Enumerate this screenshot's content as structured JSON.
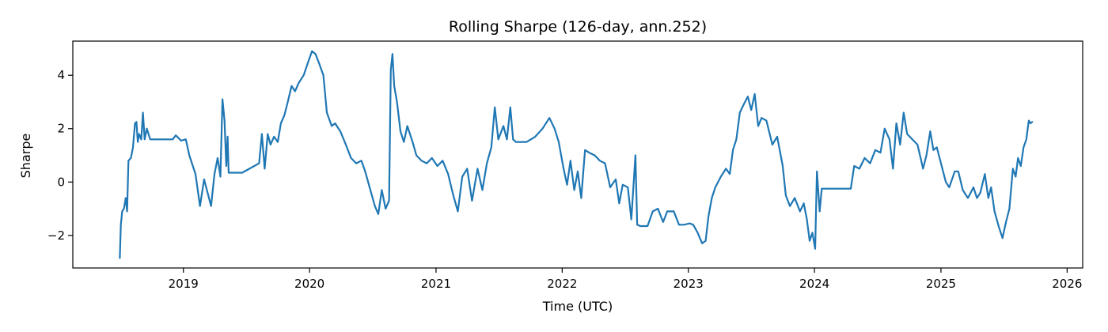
{
  "chart_data": {
    "type": "line",
    "title": "Rolling Sharpe (126-day, ann.252)",
    "xlabel": "Time (UTC)",
    "ylabel": "Sharpe",
    "xlim": [
      "2018-02-15",
      "2026-02-15"
    ],
    "ylim": [
      -3.22,
      5.28
    ],
    "x_ticks": [
      "2019",
      "2020",
      "2021",
      "2022",
      "2023",
      "2024",
      "2025",
      "2026"
    ],
    "x_tick_dates": [
      "2019-01-01",
      "2020-01-01",
      "2021-01-01",
      "2022-01-01",
      "2023-01-01",
      "2024-01-01",
      "2025-01-01",
      "2026-01-01"
    ],
    "y_ticks": [
      -2,
      0,
      2,
      4
    ],
    "y_tick_labels": [
      "−2",
      "0",
      "2",
      "4"
    ],
    "grid": false,
    "legend": "none",
    "series": [
      {
        "color": "#1f77b4",
        "points": [
          [
            "2018-07-01",
            -2.85
          ],
          [
            "2018-07-04",
            -1.6
          ],
          [
            "2018-07-08",
            -1.1
          ],
          [
            "2018-07-13",
            -1.0
          ],
          [
            "2018-07-18",
            -0.6
          ],
          [
            "2018-07-22",
            -1.1
          ],
          [
            "2018-07-26",
            0.8
          ],
          [
            "2018-08-02",
            0.9
          ],
          [
            "2018-08-08",
            1.3
          ],
          [
            "2018-08-14",
            2.2
          ],
          [
            "2018-08-18",
            2.25
          ],
          [
            "2018-08-22",
            1.5
          ],
          [
            "2018-08-26",
            1.8
          ],
          [
            "2018-09-01",
            1.6
          ],
          [
            "2018-09-06",
            2.6
          ],
          [
            "2018-09-11",
            1.6
          ],
          [
            "2018-09-17",
            2.0
          ],
          [
            "2018-09-27",
            1.6
          ],
          [
            "2018-11-01",
            1.6
          ],
          [
            "2018-12-01",
            1.6
          ],
          [
            "2018-12-10",
            1.75
          ],
          [
            "2018-12-25",
            1.55
          ],
          [
            "2019-01-08",
            1.6
          ],
          [
            "2019-01-18",
            1.0
          ],
          [
            "2019-02-05",
            0.3
          ],
          [
            "2019-02-18",
            -0.9
          ],
          [
            "2019-03-02",
            0.1
          ],
          [
            "2019-03-12",
            -0.4
          ],
          [
            "2019-03-22",
            -0.9
          ],
          [
            "2019-04-01",
            0.3
          ],
          [
            "2019-04-10",
            0.9
          ],
          [
            "2019-04-18",
            0.2
          ],
          [
            "2019-04-24",
            3.1
          ],
          [
            "2019-04-30",
            2.3
          ],
          [
            "2019-05-05",
            0.6
          ],
          [
            "2019-05-09",
            1.7
          ],
          [
            "2019-05-12",
            0.35
          ],
          [
            "2019-06-20",
            0.35
          ],
          [
            "2019-07-25",
            0.6
          ],
          [
            "2019-08-08",
            0.7
          ],
          [
            "2019-08-16",
            1.8
          ],
          [
            "2019-08-24",
            0.5
          ],
          [
            "2019-09-02",
            1.8
          ],
          [
            "2019-09-10",
            1.4
          ],
          [
            "2019-09-20",
            1.7
          ],
          [
            "2019-10-01",
            1.5
          ],
          [
            "2019-10-10",
            2.2
          ],
          [
            "2019-10-20",
            2.5
          ],
          [
            "2019-10-30",
            3.0
          ],
          [
            "2019-11-10",
            3.6
          ],
          [
            "2019-11-20",
            3.4
          ],
          [
            "2019-11-30",
            3.7
          ],
          [
            "2019-12-15",
            4.0
          ],
          [
            "2019-12-28",
            4.5
          ],
          [
            "2020-01-08",
            4.9
          ],
          [
            "2020-01-18",
            4.8
          ],
          [
            "2020-01-30",
            4.4
          ],
          [
            "2020-02-10",
            4.0
          ],
          [
            "2020-02-20",
            2.6
          ],
          [
            "2020-03-05",
            2.1
          ],
          [
            "2020-03-15",
            2.2
          ],
          [
            "2020-03-30",
            1.9
          ],
          [
            "2020-04-15",
            1.4
          ],
          [
            "2020-04-30",
            0.9
          ],
          [
            "2020-05-15",
            0.7
          ],
          [
            "2020-05-30",
            0.8
          ],
          [
            "2020-06-10",
            0.4
          ],
          [
            "2020-06-25",
            -0.3
          ],
          [
            "2020-07-08",
            -0.9
          ],
          [
            "2020-07-18",
            -1.2
          ],
          [
            "2020-07-28",
            -0.3
          ],
          [
            "2020-08-08",
            -1.0
          ],
          [
            "2020-08-18",
            -0.7
          ],
          [
            "2020-08-23",
            4.2
          ],
          [
            "2020-08-28",
            4.8
          ],
          [
            "2020-09-02",
            3.6
          ],
          [
            "2020-09-10",
            3.0
          ],
          [
            "2020-09-20",
            1.9
          ],
          [
            "2020-09-30",
            1.5
          ],
          [
            "2020-10-10",
            2.1
          ],
          [
            "2020-10-25",
            1.5
          ],
          [
            "2020-11-05",
            1.0
          ],
          [
            "2020-11-20",
            0.8
          ],
          [
            "2020-12-05",
            0.7
          ],
          [
            "2020-12-20",
            0.9
          ],
          [
            "2021-01-05",
            0.6
          ],
          [
            "2021-01-20",
            0.8
          ],
          [
            "2021-02-05",
            0.3
          ],
          [
            "2021-02-20",
            -0.5
          ],
          [
            "2021-03-05",
            -1.1
          ],
          [
            "2021-03-18",
            0.2
          ],
          [
            "2021-04-01",
            0.5
          ],
          [
            "2021-04-15",
            -0.7
          ],
          [
            "2021-05-01",
            0.5
          ],
          [
            "2021-05-15",
            -0.3
          ],
          [
            "2021-05-28",
            0.7
          ],
          [
            "2021-06-10",
            1.3
          ],
          [
            "2021-06-20",
            2.8
          ],
          [
            "2021-06-30",
            1.6
          ],
          [
            "2021-07-15",
            2.1
          ],
          [
            "2021-07-25",
            1.6
          ],
          [
            "2021-08-04",
            2.8
          ],
          [
            "2021-08-12",
            1.6
          ],
          [
            "2021-08-20",
            1.5
          ],
          [
            "2021-09-20",
            1.5
          ],
          [
            "2021-10-15",
            1.7
          ],
          [
            "2021-11-05",
            2.0
          ],
          [
            "2021-11-25",
            2.4
          ],
          [
            "2021-12-10",
            2.0
          ],
          [
            "2021-12-22",
            1.5
          ],
          [
            "2022-01-05",
            0.5
          ],
          [
            "2022-01-15",
            -0.1
          ],
          [
            "2022-01-25",
            0.8
          ],
          [
            "2022-02-05",
            -0.3
          ],
          [
            "2022-02-15",
            0.4
          ],
          [
            "2022-02-25",
            -0.6
          ],
          [
            "2022-03-08",
            1.2
          ],
          [
            "2022-03-20",
            1.1
          ],
          [
            "2022-04-05",
            1.0
          ],
          [
            "2022-04-20",
            0.8
          ],
          [
            "2022-05-05",
            0.7
          ],
          [
            "2022-05-20",
            -0.2
          ],
          [
            "2022-06-05",
            0.1
          ],
          [
            "2022-06-15",
            -0.8
          ],
          [
            "2022-06-25",
            -0.1
          ],
          [
            "2022-07-10",
            -0.2
          ],
          [
            "2022-07-20",
            -1.4
          ],
          [
            "2022-08-01",
            1.0
          ],
          [
            "2022-08-06",
            -1.6
          ],
          [
            "2022-08-15",
            -1.65
          ],
          [
            "2022-09-05",
            -1.65
          ],
          [
            "2022-09-20",
            -1.1
          ],
          [
            "2022-10-05",
            -1.0
          ],
          [
            "2022-10-20",
            -1.5
          ],
          [
            "2022-11-01",
            -1.1
          ],
          [
            "2022-11-20",
            -1.1
          ],
          [
            "2022-12-05",
            -1.6
          ],
          [
            "2022-12-20",
            -1.6
          ],
          [
            "2023-01-05",
            -1.55
          ],
          [
            "2023-01-15",
            -1.6
          ],
          [
            "2023-01-28",
            -1.9
          ],
          [
            "2023-02-10",
            -2.3
          ],
          [
            "2023-02-20",
            -2.2
          ],
          [
            "2023-02-28",
            -1.3
          ],
          [
            "2023-03-10",
            -0.6
          ],
          [
            "2023-03-20",
            -0.2
          ],
          [
            "2023-04-05",
            0.2
          ],
          [
            "2023-04-20",
            0.5
          ],
          [
            "2023-05-01",
            0.3
          ],
          [
            "2023-05-10",
            1.2
          ],
          [
            "2023-05-20",
            1.6
          ],
          [
            "2023-05-30",
            2.6
          ],
          [
            "2023-06-10",
            2.9
          ],
          [
            "2023-06-22",
            3.2
          ],
          [
            "2023-07-02",
            2.7
          ],
          [
            "2023-07-12",
            3.3
          ],
          [
            "2023-07-22",
            2.1
          ],
          [
            "2023-08-01",
            2.4
          ],
          [
            "2023-08-15",
            2.3
          ],
          [
            "2023-09-01",
            1.4
          ],
          [
            "2023-09-15",
            1.7
          ],
          [
            "2023-10-01",
            0.6
          ],
          [
            "2023-10-10",
            -0.5
          ],
          [
            "2023-10-22",
            -0.9
          ],
          [
            "2023-11-05",
            -0.6
          ],
          [
            "2023-11-20",
            -1.1
          ],
          [
            "2023-12-01",
            -0.8
          ],
          [
            "2023-12-10",
            -1.4
          ],
          [
            "2023-12-18",
            -2.2
          ],
          [
            "2023-12-26",
            -1.9
          ],
          [
            "2024-01-03",
            -2.5
          ],
          [
            "2024-01-08",
            0.4
          ],
          [
            "2024-01-16",
            -1.1
          ],
          [
            "2024-01-22",
            -0.25
          ],
          [
            "2024-02-20",
            -0.25
          ],
          [
            "2024-04-01",
            -0.25
          ],
          [
            "2024-04-15",
            -0.25
          ],
          [
            "2024-04-25",
            0.6
          ],
          [
            "2024-05-10",
            0.5
          ],
          [
            "2024-05-25",
            0.9
          ],
          [
            "2024-06-10",
            0.7
          ],
          [
            "2024-06-25",
            1.2
          ],
          [
            "2024-07-10",
            1.1
          ],
          [
            "2024-07-22",
            2.0
          ],
          [
            "2024-08-05",
            1.6
          ],
          [
            "2024-08-15",
            0.5
          ],
          [
            "2024-08-25",
            2.2
          ],
          [
            "2024-09-05",
            1.4
          ],
          [
            "2024-09-15",
            2.6
          ],
          [
            "2024-09-25",
            1.8
          ],
          [
            "2024-10-10",
            1.6
          ],
          [
            "2024-10-25",
            1.4
          ],
          [
            "2024-11-10",
            0.5
          ],
          [
            "2024-11-20",
            1.0
          ],
          [
            "2024-12-01",
            1.9
          ],
          [
            "2024-12-10",
            1.2
          ],
          [
            "2024-12-20",
            1.3
          ],
          [
            "2025-01-05",
            0.5
          ],
          [
            "2025-01-15",
            0.0
          ],
          [
            "2025-01-25",
            -0.2
          ],
          [
            "2025-02-10",
            0.4
          ],
          [
            "2025-02-20",
            0.4
          ],
          [
            "2025-03-05",
            -0.3
          ],
          [
            "2025-03-20",
            -0.6
          ],
          [
            "2025-04-05",
            -0.2
          ],
          [
            "2025-04-15",
            -0.6
          ],
          [
            "2025-04-25",
            -0.4
          ],
          [
            "2025-05-08",
            0.3
          ],
          [
            "2025-05-18",
            -0.6
          ],
          [
            "2025-05-26",
            -0.2
          ],
          [
            "2025-06-05",
            -1.1
          ],
          [
            "2025-06-18",
            -1.7
          ],
          [
            "2025-06-28",
            -2.1
          ],
          [
            "2025-07-08",
            -1.5
          ],
          [
            "2025-07-18",
            -1.0
          ],
          [
            "2025-07-28",
            0.5
          ],
          [
            "2025-08-05",
            0.2
          ],
          [
            "2025-08-12",
            0.9
          ],
          [
            "2025-08-20",
            0.6
          ],
          [
            "2025-08-28",
            1.3
          ],
          [
            "2025-09-05",
            1.6
          ],
          [
            "2025-09-12",
            2.3
          ],
          [
            "2025-09-17",
            2.2
          ],
          [
            "2025-09-22",
            2.25
          ]
        ]
      }
    ]
  }
}
